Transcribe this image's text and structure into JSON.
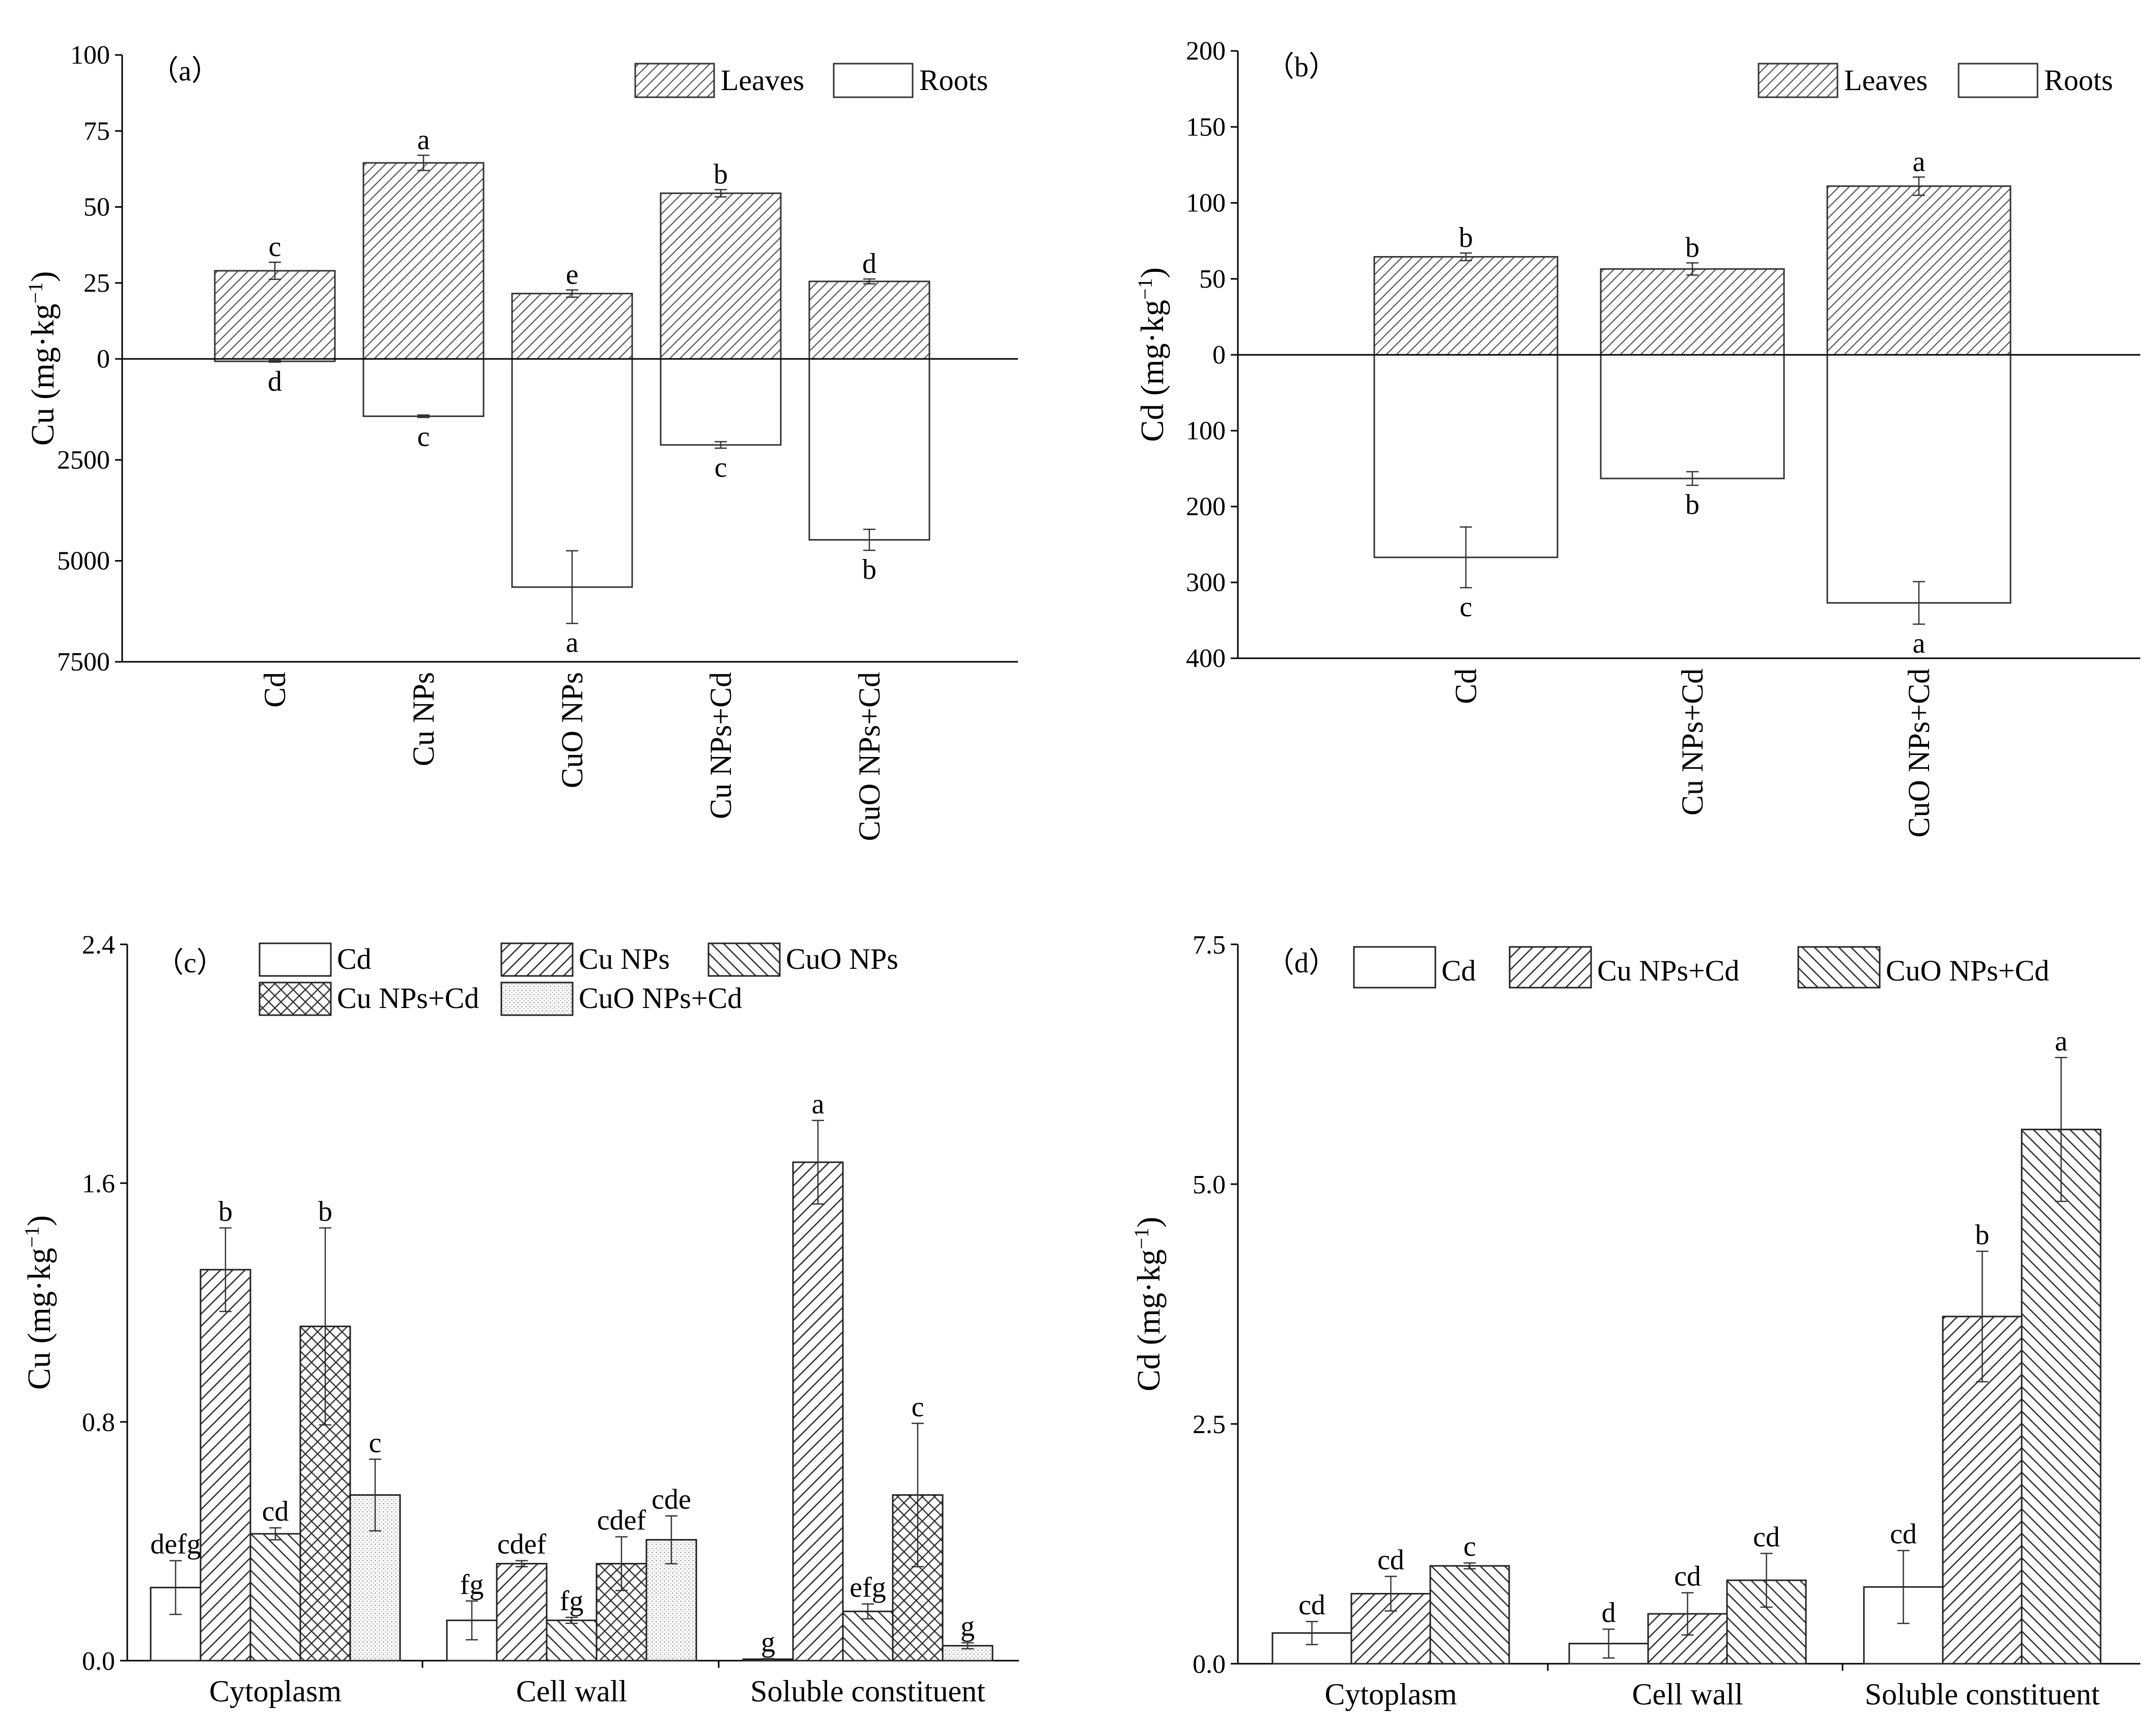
{
  "chart_data": [
    {
      "id": "a",
      "type": "bar",
      "panel_label": "（a）",
      "ylabel_main": "Cu (mg·kg",
      "ylabel_exp": "−1",
      "ylabel_close": ")",
      "categories": [
        "Cd",
        "Cu NPs",
        "CuO NPs",
        "Cu NPs+Cd",
        "CuO NPs+Cd"
      ],
      "legend": [
        "Leaves",
        "Roots"
      ],
      "upper": {
        "ylim": [
          0,
          100
        ],
        "ticks": [
          0,
          25,
          50,
          75,
          100
        ],
        "tick_labels": [
          "0",
          "25",
          "50",
          "75",
          "100"
        ]
      },
      "lower": {
        "ylim": [
          0,
          7500
        ],
        "ticks": [
          2500,
          5000,
          7500
        ],
        "tick_labels": [
          "2500",
          "5000",
          "7500"
        ]
      },
      "series": [
        {
          "name": "Leaves",
          "values": [
            29,
            64.5,
            21.5,
            54.5,
            25.5
          ],
          "errors": [
            2.8,
            2.5,
            1.2,
            1.2,
            0.8
          ],
          "letters": [
            "c",
            "a",
            "e",
            "b",
            "d"
          ]
        },
        {
          "name": "Roots",
          "values": [
            60,
            1420,
            5650,
            2130,
            4480
          ],
          "errors": [
            20,
            30,
            900,
            80,
            260
          ],
          "letters": [
            "d",
            "c",
            "a",
            "c",
            "b"
          ]
        }
      ]
    },
    {
      "id": "b",
      "type": "bar",
      "panel_label": "（b）",
      "ylabel_main": "Cd (mg·kg",
      "ylabel_exp": "−1",
      "ylabel_close": ")",
      "categories": [
        "Cd",
        "Cu NPs+Cd",
        "CuO NPs+Cd"
      ],
      "legend": [
        "Leaves",
        "Roots"
      ],
      "upper": {
        "ylim": [
          0,
          200
        ],
        "ticks": [
          0,
          50,
          100,
          150,
          200
        ],
        "tick_labels": [
          "0",
          "50",
          "100",
          "150",
          "200"
        ]
      },
      "lower": {
        "ylim": [
          0,
          400
        ],
        "ticks": [
          100,
          200,
          300,
          400
        ],
        "tick_labels": [
          "100",
          "200",
          "300",
          "400"
        ]
      },
      "series": [
        {
          "name": "Leaves",
          "values": [
            64.5,
            56.5,
            111
          ],
          "errors": [
            2.5,
            4,
            6
          ],
          "letters": [
            "b",
            "b",
            "a"
          ]
        },
        {
          "name": "Roots",
          "values": [
            267,
            163,
            327
          ],
          "errors": [
            40,
            9,
            28
          ],
          "letters": [
            "c",
            "b",
            "a"
          ]
        }
      ]
    },
    {
      "id": "c",
      "type": "bar",
      "panel_label": "（c）",
      "ylabel_main": "Cu (mg·kg",
      "ylabel_exp": "−1",
      "ylabel_close": ")",
      "categories": [
        "Cytoplasm",
        "Cell wall",
        "Soluble constituent"
      ],
      "ylim": [
        0,
        2.4
      ],
      "ticks": [
        0,
        0.8,
        1.6,
        2.4
      ],
      "tick_labels": [
        "0.0",
        "0.8",
        "1.6",
        "2.4"
      ],
      "series": [
        {
          "name": "Cd",
          "values": [
            0.245,
            0.135,
            0.005
          ],
          "errors": [
            0.09,
            0.065,
            0.002
          ],
          "letters": [
            "defg",
            "fg",
            "g"
          ]
        },
        {
          "name": "Cu NPs",
          "values": [
            1.31,
            0.325,
            1.67
          ],
          "errors": [
            0.14,
            0.01,
            0.14
          ],
          "letters": [
            "b",
            "cdef",
            "a"
          ]
        },
        {
          "name": "CuO NPs",
          "values": [
            0.425,
            0.135,
            0.165
          ],
          "errors": [
            0.02,
            0.01,
            0.025
          ],
          "letters": [
            "cd",
            "fg",
            "efg"
          ]
        },
        {
          "name": "Cu NPs+Cd",
          "values": [
            1.12,
            0.325,
            0.555
          ],
          "errors": [
            0.33,
            0.09,
            0.24
          ],
          "letters": [
            "b",
            "cdef",
            "c"
          ]
        },
        {
          "name": "CuO NPs+Cd",
          "values": [
            0.555,
            0.405,
            0.05
          ],
          "errors": [
            0.12,
            0.08,
            0.01
          ],
          "letters": [
            "c",
            "cde",
            "g"
          ]
        }
      ]
    },
    {
      "id": "d",
      "type": "bar",
      "panel_label": "（d）",
      "ylabel_main": "Cd (mg·kg",
      "ylabel_exp": "−1",
      "ylabel_close": ")",
      "categories": [
        "Cytoplasm",
        "Cell wall",
        "Soluble constituent"
      ],
      "ylim": [
        0,
        7.5
      ],
      "ticks": [
        0,
        2.5,
        5.0,
        7.5
      ],
      "tick_labels": [
        "0.0",
        "2.5",
        "5.0",
        "7.5"
      ],
      "series": [
        {
          "name": "Cd",
          "values": [
            0.32,
            0.21,
            0.8
          ],
          "errors": [
            0.12,
            0.15,
            0.38
          ],
          "letters": [
            "cd",
            "d",
            "cd"
          ]
        },
        {
          "name": "Cu NPs+Cd",
          "values": [
            0.73,
            0.52,
            3.62
          ],
          "errors": [
            0.18,
            0.22,
            0.68
          ],
          "letters": [
            "cd",
            "cd",
            "b"
          ]
        },
        {
          "name": "CuO NPs+Cd",
          "values": [
            1.02,
            0.87,
            5.57
          ],
          "errors": [
            0.03,
            0.28,
            0.75
          ],
          "letters": [
            "c",
            "cd",
            "a"
          ]
        }
      ]
    }
  ]
}
